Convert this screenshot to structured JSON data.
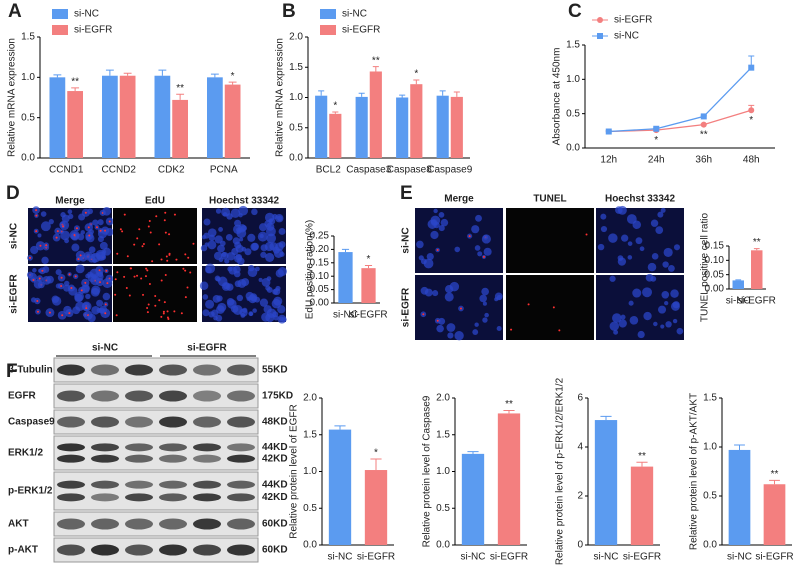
{
  "panels": {
    "labels": [
      "A",
      "B",
      "C",
      "D",
      "E",
      "F"
    ]
  },
  "images": {
    "D": {
      "headers": [
        "Merge",
        "EdU",
        "Hoechst 33342"
      ],
      "rows": [
        "si-NC",
        "si-EGFR"
      ]
    },
    "E": {
      "headers": [
        "Merge",
        "TUNEL",
        "Hoechst 33342"
      ],
      "rows": [
        "si-NC",
        "si-EGFR"
      ]
    },
    "F": {
      "groups": [
        "si-NC",
        "si-EGFR"
      ],
      "proteins": [
        "β-Tubulin",
        "EGFR",
        "Caspase9",
        "ERK1/2",
        "p-ERK1/2",
        "AKT",
        "p-AKT"
      ],
      "sizes": [
        [
          "55KD"
        ],
        [
          "175KD"
        ],
        [
          "48KD"
        ],
        [
          "44KD",
          "42KD"
        ],
        [
          "44KD",
          "42KD"
        ],
        [
          "60KD"
        ],
        [
          "60KD"
        ]
      ]
    }
  },
  "chart_data": [
    {
      "type": "bar",
      "ylabel": "Relative mRNA expression",
      "categories": [
        "CCND1",
        "CCND2",
        "CDK2",
        "PCNA"
      ],
      "series": [
        {
          "name": "si-NC",
          "color": "#5b9bf0",
          "values": [
            1.0,
            1.02,
            1.02,
            1.0
          ],
          "errors": [
            0.03,
            0.07,
            0.07,
            0.04
          ]
        },
        {
          "name": "si-EGFR",
          "color": "#f37f7f",
          "values": [
            0.83,
            1.02,
            0.72,
            0.91
          ],
          "errors": [
            0.04,
            0.03,
            0.07,
            0.03
          ]
        }
      ],
      "annotations": [
        "**",
        null,
        "**",
        "*"
      ],
      "ylim": [
        0,
        1.5
      ],
      "yticks": [
        {
          "value": 0,
          "label": "0.0"
        },
        0.5,
        {
          "value": 1,
          "label": "1.0"
        },
        1.5
      ],
      "legend": true
    },
    {
      "type": "bar",
      "ylabel": "Relative mRNA expression",
      "categories": [
        "BCL2",
        "Caspase3",
        "Caspase8",
        "Caspase9"
      ],
      "series": [
        {
          "name": "si-NC",
          "color": "#5b9bf0",
          "values": [
            1.03,
            1.01,
            1.0,
            1.03
          ],
          "errors": [
            0.08,
            0.06,
            0.04,
            0.08
          ]
        },
        {
          "name": "si-EGFR",
          "color": "#f37f7f",
          "values": [
            0.73,
            1.43,
            1.22,
            1.01
          ],
          "errors": [
            0.03,
            0.08,
            0.07,
            0.08
          ]
        }
      ],
      "annotations": [
        "*",
        "**",
        "*",
        null
      ],
      "ylim": [
        0,
        2
      ],
      "yticks": [
        {
          "value": 0,
          "label": "0.0"
        },
        0.5,
        {
          "value": 1,
          "label": "1.0"
        },
        1.5,
        {
          "value": 2,
          "label": "2.0"
        }
      ],
      "legend": true
    },
    {
      "type": "line",
      "ylabel": "Absorbance at 450nm",
      "categories": [
        "12h",
        "24h",
        "36h",
        "48h"
      ],
      "series": [
        {
          "name": "si-EGFR",
          "color": "#f37f7f",
          "marker": "circle",
          "values": [
            0.24,
            0.26,
            0.34,
            0.55
          ],
          "errors": [
            0.01,
            0.02,
            0.01,
            0.07
          ]
        },
        {
          "name": "si-NC",
          "color": "#5b9bf0",
          "marker": "square",
          "values": [
            0.24,
            0.28,
            0.46,
            1.17
          ],
          "errors": [
            0.01,
            0.01,
            0.01,
            0.17
          ]
        }
      ],
      "annotations": [
        null,
        "*",
        "**",
        "*"
      ],
      "ylim": [
        0,
        1.5
      ],
      "yticks": [
        {
          "value": 0,
          "label": "0.0"
        },
        0.5,
        {
          "value": 1,
          "label": "1.0"
        },
        1.5
      ],
      "legend": true
    },
    {
      "type": "bar",
      "ylabel": "EdU positive ration(%)",
      "categories": [
        "si-NC",
        "si-EGFR"
      ],
      "colors": [
        "#5b9bf0",
        "#f37f7f"
      ],
      "values": [
        0.19,
        0.13
      ],
      "errors": [
        0.01,
        0.01
      ],
      "annotations": [
        null,
        "*"
      ],
      "ylim": [
        0,
        0.25
      ],
      "yticks": [
        {
          "value": 0,
          "label": "0.00"
        },
        0.05,
        {
          "value": 0.1,
          "label": "0.10"
        },
        0.15,
        {
          "value": 0.2,
          "label": "0.20"
        },
        0.25
      ]
    },
    {
      "type": "bar",
      "ylabel": "TUNEL positive cell ratio",
      "categories": [
        "si-NC",
        "si-EGFR"
      ],
      "colors": [
        "#5b9bf0",
        "#f37f7f"
      ],
      "values": [
        0.03,
        0.135
      ],
      "errors": [
        0.002,
        0.006
      ],
      "annotations": [
        null,
        "**"
      ],
      "ylim": [
        0,
        0.15
      ],
      "yticks": [
        {
          "value": 0,
          "label": "0.00"
        },
        0.05,
        {
          "value": 0.1,
          "label": "0.10"
        },
        0.15
      ]
    },
    {
      "type": "bar",
      "ylabel": "Relative protein level of EGFR",
      "categories": [
        "si-NC",
        "si-EGFR"
      ],
      "colors": [
        "#5b9bf0",
        "#f37f7f"
      ],
      "values": [
        1.57,
        1.02
      ],
      "errors": [
        0.05,
        0.15
      ],
      "annotations": [
        null,
        "*"
      ],
      "ylim": [
        0,
        2
      ],
      "yticks": [
        {
          "value": 0,
          "label": "0.0"
        },
        0.5,
        {
          "value": 1,
          "label": "1.0"
        },
        1.5,
        {
          "value": 2,
          "label": "2.0"
        }
      ]
    },
    {
      "type": "bar",
      "ylabel": "Relative protein level of Caspase9",
      "categories": [
        "si-NC",
        "si-EGFR"
      ],
      "colors": [
        "#5b9bf0",
        "#f37f7f"
      ],
      "values": [
        1.24,
        1.79
      ],
      "errors": [
        0.03,
        0.04
      ],
      "annotations": [
        null,
        "**"
      ],
      "ylim": [
        0,
        2
      ],
      "yticks": [
        {
          "value": 0,
          "label": "0.0"
        },
        0.5,
        {
          "value": 1,
          "label": "1.0"
        },
        1.5,
        {
          "value": 2,
          "label": "2.0"
        }
      ]
    },
    {
      "type": "bar",
      "ylabel": "Relative protein level of p-ERK1/2/ERK1/2",
      "categories": [
        "si-NC",
        "si-EGFR"
      ],
      "colors": [
        "#5b9bf0",
        "#f37f7f"
      ],
      "values": [
        5.1,
        3.2
      ],
      "errors": [
        0.15,
        0.18
      ],
      "annotations": [
        null,
        "**"
      ],
      "ylim": [
        0,
        6
      ],
      "yticks": [
        0,
        2,
        4,
        6
      ]
    },
    {
      "type": "bar",
      "ylabel": "Relative protein level of p-AKT/AKT",
      "categories": [
        "si-NC",
        "si-EGFR"
      ],
      "colors": [
        "#5b9bf0",
        "#f37f7f"
      ],
      "values": [
        0.97,
        0.62
      ],
      "errors": [
        0.05,
        0.04
      ],
      "annotations": [
        null,
        "**"
      ],
      "ylim": [
        0,
        1.5
      ],
      "yticks": [
        {
          "value": 0,
          "label": "0.0"
        },
        0.5,
        {
          "value": 1,
          "label": "1.0"
        },
        1.5
      ]
    }
  ]
}
